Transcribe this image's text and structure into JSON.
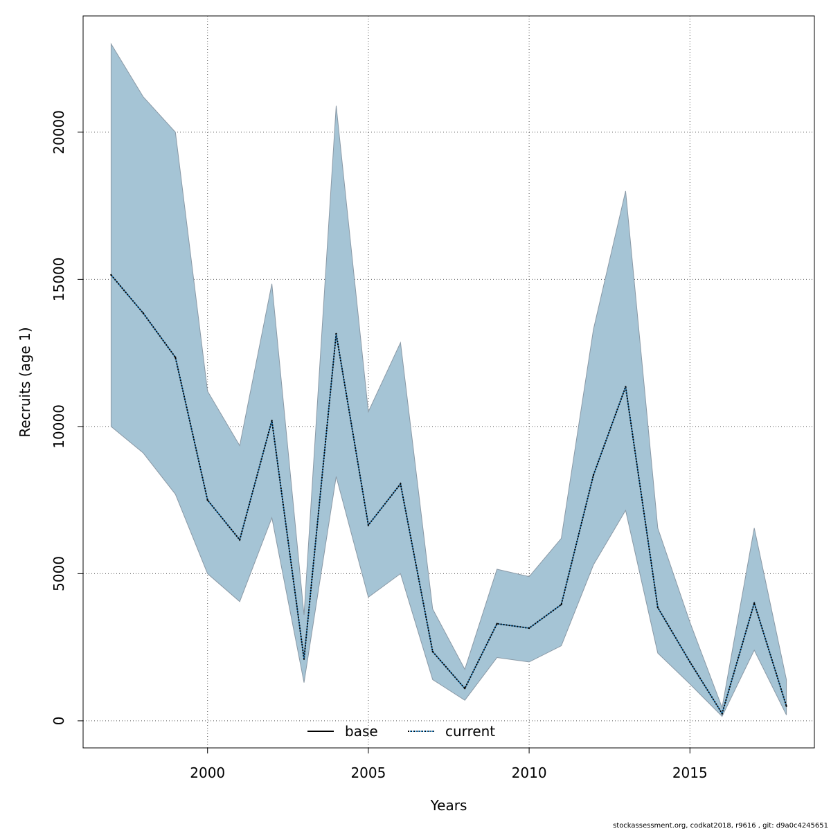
{
  "chart_data": {
    "type": "line",
    "xlabel": "Years",
    "ylabel": "Recruits (age 1)",
    "xlim": [
      1996.13,
      2018.87
    ],
    "ylim": [
      -920,
      23950
    ],
    "xticks": [
      2000,
      2005,
      2010,
      2015
    ],
    "yticks": [
      0,
      5000,
      10000,
      15000,
      20000
    ],
    "x_tick_labels": [
      "2000",
      "2005",
      "2010",
      "2015"
    ],
    "y_tick_labels": [
      "0",
      "5000",
      "10000",
      "15000",
      "20000"
    ],
    "grid": true,
    "legend_position": "bottom",
    "legend": [
      {
        "label": "base",
        "style": "solid",
        "color": "#000000"
      },
      {
        "label": "current",
        "style": "dotted",
        "color": "#000000",
        "overlay_color": "#1f77b4"
      }
    ],
    "x": [
      1997,
      1998,
      1999,
      2000,
      2001,
      2002,
      2003,
      2004,
      2005,
      2006,
      2007,
      2008,
      2009,
      2010,
      2011,
      2012,
      2013,
      2014,
      2015,
      2016,
      2017,
      2018
    ],
    "band": {
      "name": "confidence interval",
      "fill": "#a5c4d5",
      "stroke": "#8a99a6",
      "upper": [
        23000,
        21200,
        20000,
        11200,
        9350,
        14850,
        3600,
        20900,
        10500,
        12850,
        3800,
        1750,
        5150,
        4900,
        6200,
        13300,
        18000,
        6550,
        3350,
        450,
        6550,
        1400
      ],
      "lower": [
        10000,
        9100,
        7700,
        5000,
        4050,
        6900,
        1300,
        8300,
        4200,
        5000,
        1400,
        700,
        2150,
        2000,
        2550,
        5300,
        7150,
        2300,
        1250,
        150,
        2400,
        200
      ]
    },
    "series": [
      {
        "name": "base",
        "style": "solid",
        "values": [
          15150,
          13850,
          12350,
          7500,
          6150,
          10200,
          2100,
          13150,
          6650,
          8050,
          2350,
          1100,
          3300,
          3150,
          3950,
          8350,
          11350,
          3850,
          2000,
          250,
          4000,
          500
        ]
      },
      {
        "name": "current",
        "style": "dotted",
        "values": [
          15150,
          13850,
          12350,
          7500,
          6150,
          10200,
          2100,
          13150,
          6650,
          8050,
          2350,
          1100,
          3300,
          3150,
          3950,
          8350,
          11350,
          3850,
          2000,
          250,
          4000,
          500
        ]
      }
    ]
  },
  "footer": "stockassessment.org, codkat2018, r9616 , git: d9a0c4245651"
}
